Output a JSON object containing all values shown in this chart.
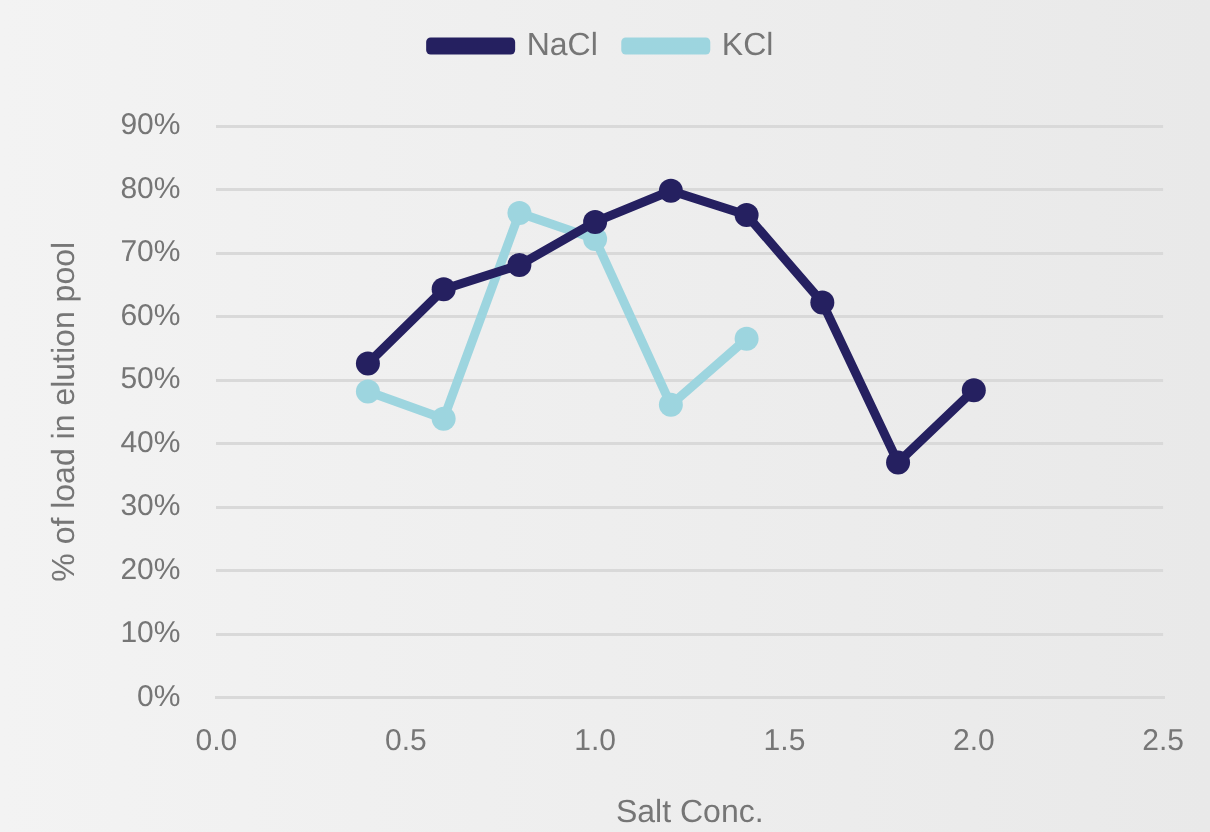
{
  "chart_data": {
    "type": "line",
    "xlabel": "Salt Conc.",
    "ylabel": "% of load in elution pool",
    "series": [
      {
        "name": "NaCl",
        "color": "#252060",
        "x": [
          0.4,
          0.6,
          0.8,
          1.0,
          1.2,
          1.4,
          1.6,
          1.8,
          2.0
        ],
        "values": [
          52.6,
          64.3,
          68.1,
          74.9,
          79.8,
          76.0,
          62.2,
          37.0,
          48.4
        ]
      },
      {
        "name": "KCl",
        "color": "#9dd5df",
        "x": [
          0.4,
          0.6,
          0.8,
          1.0,
          1.2,
          1.4
        ],
        "values": [
          48.2,
          43.9,
          76.3,
          72.2,
          46.1,
          56.5
        ]
      }
    ],
    "xlim": [
      0,
      2.5
    ],
    "xticks": [
      {
        "value": 0,
        "label": "0.0"
      },
      0.5,
      {
        "value": 1,
        "label": "1.0"
      },
      1.5,
      {
        "value": 2,
        "label": "2.0"
      },
      2.5
    ],
    "ylim": [
      0,
      90
    ],
    "yticks": [
      {
        "value": 0,
        "label": "0%"
      },
      {
        "value": 10,
        "label": "10%"
      },
      {
        "value": 20,
        "label": "20%"
      },
      {
        "value": 30,
        "label": "30%"
      },
      {
        "value": 40,
        "label": "40%"
      },
      {
        "value": 50,
        "label": "50%"
      },
      {
        "value": 60,
        "label": "60%"
      },
      {
        "value": 70,
        "label": "70%"
      },
      {
        "value": 80,
        "label": "80%"
      },
      {
        "value": 90,
        "label": "90%"
      }
    ],
    "grid": "y",
    "legend": "top",
    "marker": "circle",
    "line_style": "solid"
  }
}
